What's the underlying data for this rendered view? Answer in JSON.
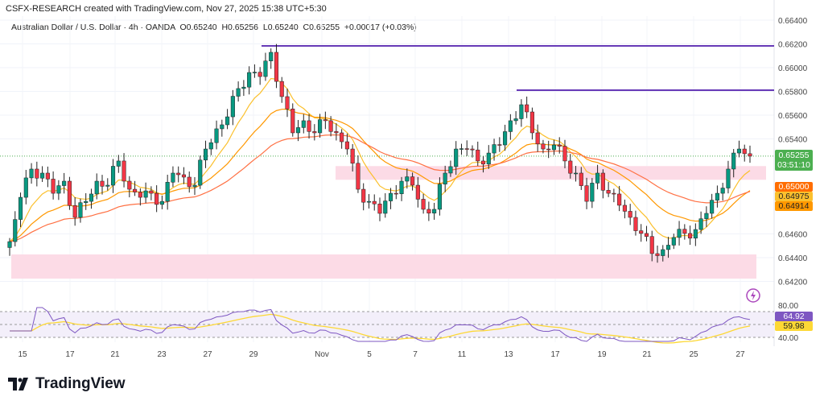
{
  "credit": "CSFX-RESEARCH created with TradingView.com, Nov 27, 2025 15:38 UTC+5:30",
  "legend": {
    "symbol": "Australian Dollar / U.S. Dollar · 4h · OANDA",
    "open": "O0.65240",
    "high": "H0.65256",
    "low": "L0.65240",
    "close": "C0.65255",
    "change": "+0.00017 (+0.03%)"
  },
  "footer": {
    "brand": "TradingView"
  },
  "colors": {
    "up": "#089981",
    "down": "#f23645",
    "ema_fast": "#fbc02d",
    "ema_mid": "#ff9800",
    "ema_slow": "#ff7043",
    "rsi": "#7e57c2",
    "rsi_ma": "#fdd835",
    "zone": "#fcdbe6",
    "level": "#673ab7"
  },
  "chart_data": {
    "type": "candlestick",
    "timeframe": "4h",
    "y_ticks": [
      "0.66400",
      "0.66200",
      "0.66000",
      "0.65800",
      "0.65600",
      "0.65400",
      "0.64600",
      "0.64400",
      "0.64200"
    ],
    "ylim": [
      0.6418,
      0.6645
    ],
    "x_ticks": [
      "15",
      "17",
      "21",
      "23",
      "27",
      "29",
      "Nov",
      "5",
      "7",
      "11",
      "13",
      "17",
      "19",
      "21",
      "25",
      "27"
    ],
    "closes": [
      0.64535,
      0.64908,
      0.65146,
      0.65112,
      0.64942,
      0.65044,
      0.64739,
      0.64874,
      0.65044,
      0.6501,
      0.65214,
      0.64976,
      0.64908,
      0.64942,
      0.64874,
      0.65112,
      0.65078,
      0.6501,
      0.65315,
      0.65485,
      0.65586,
      0.65824,
      0.65959,
      0.65925,
      0.66129,
      0.65756,
      0.65451,
      0.65553,
      0.65451,
      0.65553,
      0.65451,
      0.65315,
      0.64976,
      0.64874,
      0.64773,
      0.64942,
      0.65044,
      0.6501,
      0.64807,
      0.64807,
      0.65112,
      0.65315,
      0.65315,
      0.65214,
      0.65281,
      0.65349,
      0.65553,
      0.65688,
      0.65451,
      0.65315,
      0.65349,
      0.65214,
      0.65112,
      0.64874,
      0.65112,
      0.64942,
      0.64841,
      0.64739,
      0.64604,
      0.64434,
      0.64468,
      0.6457,
      0.64604,
      0.64637,
      0.64773,
      0.64942,
      0.65146,
      0.65315,
      0.65255
    ],
    "levels": [
      0.6618,
      0.658
    ],
    "zones": [
      [
        0.6508,
        0.6511
      ],
      [
        0.6422,
        0.6443
      ]
    ],
    "last_price": "0.65255",
    "countdown": "03:51:10",
    "ma_labels": [
      "0.65000",
      "0.64975",
      "0.64914"
    ],
    "rsi": {
      "ticks": [
        "80.00",
        "40.00"
      ],
      "value": "64.92",
      "ma_value": "59.98"
    }
  }
}
